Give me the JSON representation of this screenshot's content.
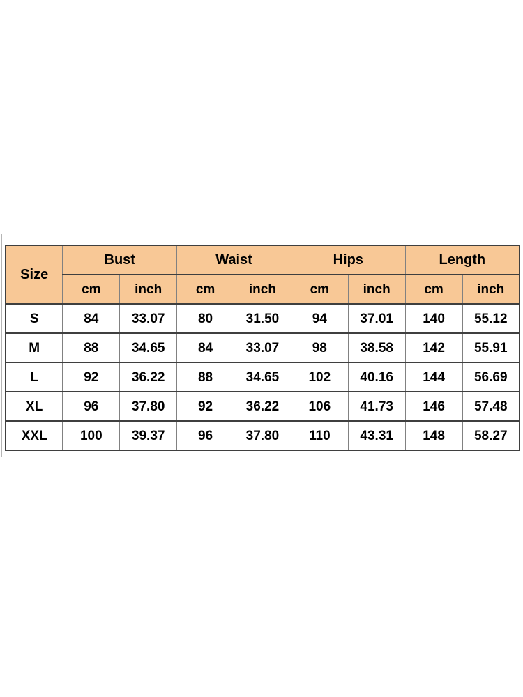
{
  "colors": {
    "page_bg": "#ffffff",
    "header_bg": "#f8c896",
    "grid_dark": "#3f3f3f",
    "grid_light": "#818181",
    "text": "#000000",
    "edge_line": "#b5b5b5"
  },
  "chart_data": {
    "type": "table",
    "corner_header": "Size",
    "column_groups": [
      {
        "label": "Bust",
        "subcolumns": [
          "cm",
          "inch"
        ]
      },
      {
        "label": "Waist",
        "subcolumns": [
          "cm",
          "inch"
        ]
      },
      {
        "label": "Hips",
        "subcolumns": [
          "cm",
          "inch"
        ]
      },
      {
        "label": "Length",
        "subcolumns": [
          "cm",
          "inch"
        ]
      }
    ],
    "columns_flat": [
      "Size",
      "Bust cm",
      "Bust inch",
      "Waist cm",
      "Waist inch",
      "Hips cm",
      "Hips inch",
      "Length cm",
      "Length inch"
    ],
    "rows": [
      {
        "size": "S",
        "values": [
          "84",
          "33.07",
          "80",
          "31.50",
          "94",
          "37.01",
          "140",
          "55.12"
        ]
      },
      {
        "size": "M",
        "values": [
          "88",
          "34.65",
          "84",
          "33.07",
          "98",
          "38.58",
          "142",
          "55.91"
        ]
      },
      {
        "size": "L",
        "values": [
          "92",
          "36.22",
          "88",
          "34.65",
          "102",
          "40.16",
          "144",
          "56.69"
        ]
      },
      {
        "size": "XL",
        "values": [
          "96",
          "37.80",
          "92",
          "36.22",
          "106",
          "41.73",
          "146",
          "57.48"
        ]
      },
      {
        "size": "XXL",
        "values": [
          "100",
          "39.37",
          "96",
          "37.80",
          "110",
          "43.31",
          "148",
          "58.27"
        ]
      }
    ]
  }
}
